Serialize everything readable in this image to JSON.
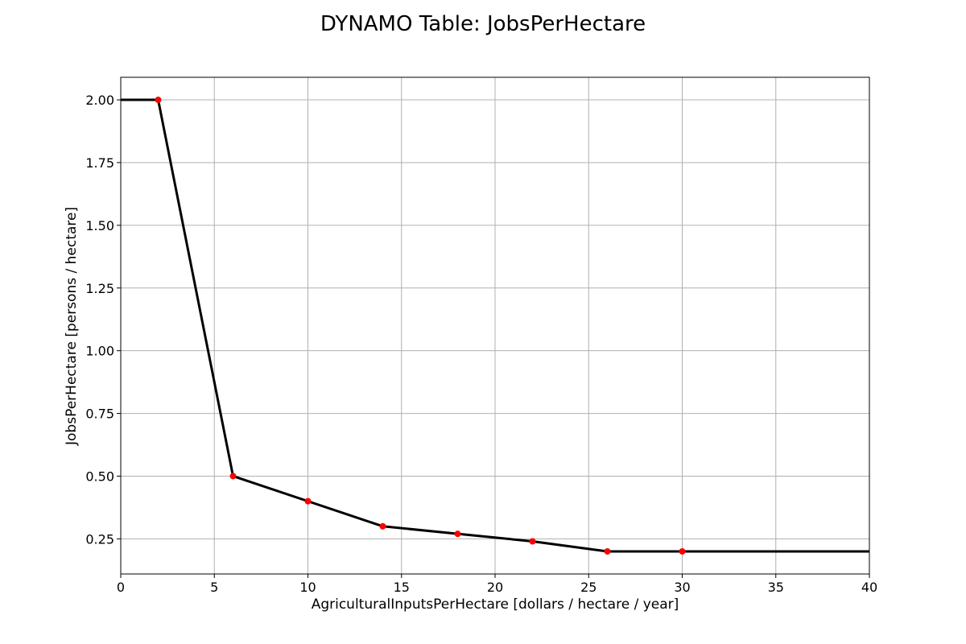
{
  "chart_data": {
    "type": "line",
    "title": "DYNAMO Table: JobsPerHectare",
    "xlabel": "AgriculturalInputsPerHectare [dollars / hectare / year]",
    "ylabel": "JobsPerHectare [persons / hectare]",
    "xlim": [
      0,
      40
    ],
    "ylim": [
      0.11,
      2.09
    ],
    "xticks": [
      0,
      5,
      10,
      15,
      20,
      25,
      30,
      35,
      40
    ],
    "xtick_labels": [
      "0",
      "5",
      "10",
      "15",
      "20",
      "25",
      "30",
      "35",
      "40"
    ],
    "yticks": [
      0.25,
      0.5,
      0.75,
      1.0,
      1.25,
      1.5,
      1.75,
      2.0
    ],
    "ytick_labels": [
      "0.25",
      "0.50",
      "0.75",
      "1.00",
      "1.25",
      "1.50",
      "1.75",
      "2.00"
    ],
    "grid": true,
    "series": [
      {
        "style": "line",
        "color": "#000000",
        "x": [
          0,
          2,
          6,
          10,
          14,
          18,
          22,
          26,
          30,
          40
        ],
        "y": [
          2.0,
          2.0,
          0.5,
          0.4,
          0.3,
          0.27,
          0.24,
          0.2,
          0.2,
          0.2
        ]
      },
      {
        "style": "points",
        "color": "#ff0000",
        "x": [
          2,
          6,
          10,
          14,
          18,
          22,
          26,
          30
        ],
        "y": [
          2.0,
          0.5,
          0.4,
          0.3,
          0.27,
          0.24,
          0.2,
          0.2
        ]
      }
    ]
  }
}
